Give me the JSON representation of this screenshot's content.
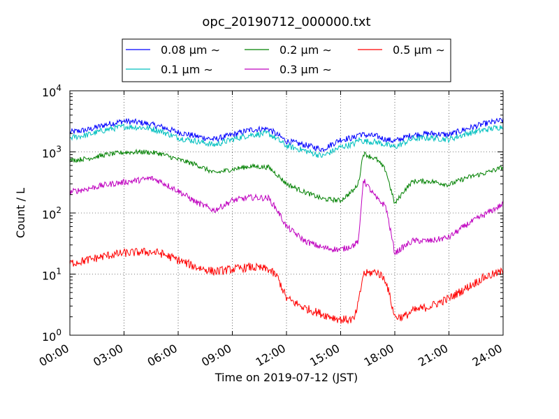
{
  "chart_data": {
    "type": "line",
    "title": "opc_20190712_000000.txt",
    "xlabel": "Time on 2019-07-12 (JST)",
    "ylabel": "Count / L",
    "y_scale": "log",
    "ylim": [
      1,
      10000
    ],
    "xlim": [
      "00:00",
      "24:00"
    ],
    "x_tick_labels": [
      "00:00",
      "03:00",
      "06:00",
      "09:00",
      "12:00",
      "15:00",
      "18:00",
      "21:00",
      "24:00"
    ],
    "y_ticks": [
      {
        "base": "10",
        "exp": "0"
      },
      {
        "base": "10",
        "exp": "1"
      },
      {
        "base": "10",
        "exp": "2"
      },
      {
        "base": "10",
        "exp": "3"
      },
      {
        "base": "10",
        "exp": "4"
      }
    ],
    "grid": true,
    "legend_position": "top-center",
    "x": [
      "00:00",
      "01:00",
      "02:00",
      "03:00",
      "04:00",
      "04:30",
      "05:00",
      "06:00",
      "07:00",
      "08:00",
      "09:00",
      "10:00",
      "11:00",
      "11:30",
      "12:00",
      "13:00",
      "14:00",
      "15:00",
      "15:45",
      "16:00",
      "16:15",
      "17:00",
      "17:30",
      "18:00",
      "18:30",
      "19:00",
      "20:00",
      "21:00",
      "22:00",
      "23:00",
      "24:00"
    ],
    "series": [
      {
        "name": "0.08 µm ∼",
        "color": "#0000ff",
        "values": [
          2100,
          2300,
          2800,
          3200,
          3000,
          2800,
          2600,
          2100,
          1800,
          1600,
          1900,
          2300,
          2400,
          1900,
          1500,
          1300,
          1100,
          1600,
          1700,
          2000,
          1900,
          1800,
          1600,
          1500,
          1700,
          1900,
          2000,
          1900,
          2400,
          2900,
          3300
        ]
      },
      {
        "name": "0.1 µm ∼",
        "color": "#00bfbf",
        "values": [
          1700,
          1900,
          2300,
          2600,
          2500,
          2400,
          2200,
          1700,
          1500,
          1300,
          1600,
          1900,
          2000,
          1600,
          1250,
          1050,
          850,
          1200,
          1350,
          1600,
          1500,
          1450,
          1300,
          1200,
          1400,
          1650,
          1700,
          1600,
          2000,
          2300,
          2600
        ]
      },
      {
        "name": "0.2 µm ∼",
        "color": "#008000",
        "values": [
          720,
          780,
          900,
          980,
          1000,
          980,
          940,
          750,
          620,
          450,
          520,
          580,
          560,
          420,
          300,
          220,
          170,
          160,
          240,
          320,
          950,
          750,
          500,
          140,
          230,
          330,
          330,
          290,
          380,
          450,
          560
        ]
      },
      {
        "name": "0.3 µm ∼",
        "color": "#bf00bf",
        "values": [
          220,
          250,
          290,
          320,
          350,
          370,
          330,
          230,
          150,
          110,
          160,
          180,
          175,
          110,
          60,
          35,
          27,
          25,
          30,
          35,
          350,
          170,
          130,
          22,
          28,
          35,
          35,
          40,
          65,
          95,
          140
        ]
      },
      {
        "name": "0.5 µm ∼",
        "color": "#ff0000",
        "values": [
          15,
          17,
          20,
          22,
          23,
          23,
          22,
          17,
          13,
          11,
          12,
          13,
          12,
          9,
          4,
          2.8,
          2.2,
          1.8,
          1.8,
          3.5,
          10,
          11,
          8,
          2,
          2,
          2.5,
          3,
          4,
          6,
          9,
          11
        ]
      }
    ]
  }
}
